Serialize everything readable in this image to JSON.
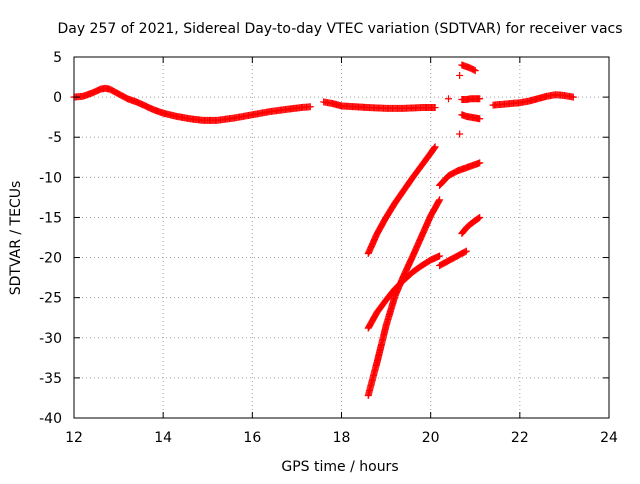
{
  "chart_data": {
    "type": "scatter",
    "title": "Day 257 of 2021, Sidereal Day-to-day VTEC variation (SDTVAR) for receiver vacs",
    "xlabel": "GPS time / hours",
    "ylabel": "SDTVAR / TECUs",
    "xlim": [
      12,
      24
    ],
    "ylim": [
      -40,
      5
    ],
    "xticks": [
      12,
      14,
      16,
      18,
      20,
      22,
      24
    ],
    "yticks": [
      5,
      0,
      -5,
      -10,
      -15,
      -20,
      -25,
      -30,
      -35,
      -40
    ],
    "xtick_labels": [
      "12",
      "14",
      "16",
      "18",
      "20",
      "22",
      "24"
    ],
    "ytick_labels": [
      "5",
      "0",
      "-5",
      "-10",
      "-15",
      "-20",
      "-25",
      "-30",
      "-35",
      "-40"
    ],
    "grid": true,
    "marker": "+",
    "color": "#ff0000",
    "series": [
      {
        "name": "main-trace-part1",
        "x": [
          12.0,
          12.2,
          12.4,
          12.6,
          12.7,
          12.8,
          13.0,
          13.2,
          13.4,
          13.6,
          13.8,
          14.0,
          14.3,
          14.6,
          14.9,
          15.2,
          15.6,
          16.0,
          16.4,
          16.8,
          17.1,
          17.3
        ],
        "y": [
          0.0,
          0.1,
          0.5,
          1.0,
          1.1,
          1.0,
          0.4,
          -0.2,
          -0.6,
          -1.1,
          -1.6,
          -2.0,
          -2.4,
          -2.7,
          -2.9,
          -2.9,
          -2.6,
          -2.2,
          -1.8,
          -1.5,
          -1.3,
          -1.2
        ]
      },
      {
        "name": "main-trace-part2",
        "x": [
          17.6,
          17.8,
          18.0,
          18.3,
          18.6,
          19.0,
          19.4,
          19.8,
          20.1
        ],
        "y": [
          -0.6,
          -0.8,
          -1.1,
          -1.2,
          -1.3,
          -1.4,
          -1.4,
          -1.3,
          -1.3
        ]
      },
      {
        "name": "trace-after-21",
        "x": [
          21.4,
          21.6,
          21.8,
          22.0,
          22.2,
          22.4,
          22.6,
          22.8,
          23.0,
          23.2
        ],
        "y": [
          -1.0,
          -0.9,
          -0.8,
          -0.7,
          -0.5,
          -0.2,
          0.1,
          0.3,
          0.2,
          0.0
        ]
      },
      {
        "name": "short-segment-20.7-upper",
        "x": [
          20.7,
          20.8,
          20.9,
          21.0
        ],
        "y": [
          4.0,
          3.8,
          3.6,
          3.3
        ]
      },
      {
        "name": "short-segment-20.7-near-zero",
        "x": [
          20.7,
          20.8,
          20.9,
          21.0,
          21.1
        ],
        "y": [
          -0.3,
          -0.3,
          -0.2,
          -0.2,
          -0.2
        ]
      },
      {
        "name": "short-segment-20.7-lower",
        "x": [
          20.7,
          20.8,
          20.9,
          21.0,
          21.1
        ],
        "y": [
          -2.2,
          -2.4,
          -2.5,
          -2.6,
          -2.7
        ]
      },
      {
        "name": "isolated-points",
        "x": [
          20.65,
          20.65,
          20.4
        ],
        "y": [
          2.7,
          -4.6,
          -0.2
        ]
      },
      {
        "name": "arc-a",
        "x": [
          18.6,
          18.8,
          19.0,
          19.2,
          19.4,
          19.6,
          19.8,
          20.0,
          20.1
        ],
        "y": [
          -19.5,
          -17.0,
          -15.0,
          -13.2,
          -11.6,
          -10.0,
          -8.5,
          -7.0,
          -6.2
        ]
      },
      {
        "name": "arc-b",
        "x": [
          18.6,
          18.8,
          19.0,
          19.2,
          19.4,
          19.6,
          19.8,
          20.0,
          20.2
        ],
        "y": [
          -28.8,
          -26.8,
          -25.3,
          -23.9,
          -22.8,
          -21.8,
          -21.0,
          -20.3,
          -19.8
        ]
      },
      {
        "name": "arc-c",
        "x": [
          18.6,
          18.8,
          19.0,
          19.2,
          19.4,
          19.6,
          19.8,
          20.0,
          20.2
        ],
        "y": [
          -37.2,
          -33.0,
          -28.5,
          -24.8,
          -22.2,
          -19.8,
          -17.3,
          -14.8,
          -12.8
        ]
      },
      {
        "name": "arc-d",
        "x": [
          20.2,
          20.4,
          20.6,
          20.8,
          21.0,
          21.1
        ],
        "y": [
          -11.0,
          -9.8,
          -9.2,
          -8.8,
          -8.4,
          -8.2
        ]
      },
      {
        "name": "arc-e",
        "x": [
          20.2,
          20.4,
          20.6,
          20.8
        ],
        "y": [
          -21.0,
          -20.4,
          -19.8,
          -19.2
        ]
      },
      {
        "name": "arc-f",
        "x": [
          20.7,
          20.8,
          20.9,
          21.0,
          21.1
        ],
        "y": [
          -17.0,
          -16.3,
          -15.8,
          -15.4,
          -15.0
        ]
      }
    ]
  }
}
